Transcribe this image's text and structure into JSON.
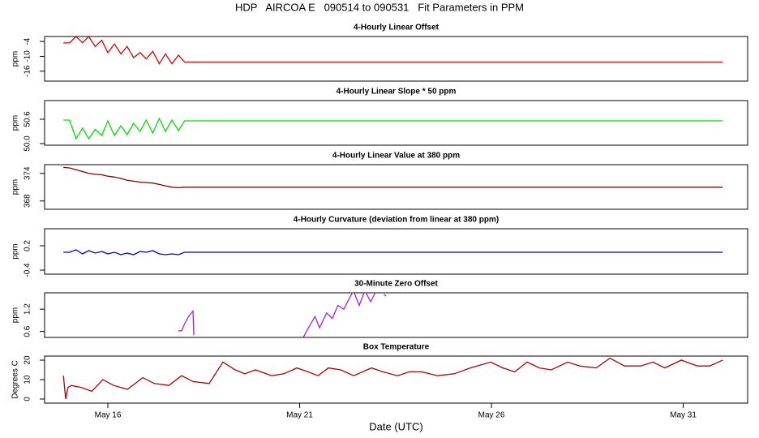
{
  "title": "HDP   AIRCOA E   090514 to 090531   Fit Parameters in PPM",
  "chart_data": [
    {
      "type": "line",
      "title": "4-Hourly Linear Offset",
      "ylabel": "ppm",
      "color": "#e00000",
      "x": [
        14.84,
        15.0,
        15.17,
        15.34,
        15.5,
        15.67,
        15.84,
        16.0,
        16.17,
        16.34,
        16.5,
        16.67,
        16.84,
        17.0,
        17.17,
        17.34,
        17.5,
        17.67,
        17.84,
        18.0,
        32.03
      ],
      "values": [
        -4.6,
        -4.6,
        -2,
        -4.5,
        -2,
        -6,
        -3.5,
        -8.5,
        -5,
        -9,
        -6,
        -10.5,
        -8.5,
        -11,
        -8,
        -13,
        -9,
        -13,
        -9.5,
        -12.3,
        -12.3
      ],
      "xlim": [
        14.35,
        32.68
      ],
      "ylim": [
        -20,
        -2
      ],
      "yticks": [
        -16,
        -10,
        -4
      ]
    },
    {
      "type": "line",
      "title": "4-Hourly Linear Slope * 50 ppm",
      "ylabel": "ppm",
      "color": "#00e000",
      "x": [
        14.84,
        15.0,
        15.17,
        15.34,
        15.5,
        15.67,
        15.84,
        16.0,
        16.17,
        16.34,
        16.5,
        16.67,
        16.84,
        17.0,
        17.17,
        17.34,
        17.5,
        17.67,
        17.84,
        18.0,
        32.03
      ],
      "values": [
        50.58,
        50.58,
        50.12,
        50.38,
        50.12,
        50.35,
        50.2,
        50.56,
        50.2,
        50.44,
        50.22,
        50.5,
        50.3,
        50.58,
        50.26,
        50.62,
        50.3,
        50.58,
        50.32,
        50.56,
        50.56
      ],
      "xlim": [
        14.35,
        32.68
      ],
      "ylim": [
        49.96,
        51.06
      ],
      "yticks": [
        {
          "value": 50,
          "label": "50.0"
        },
        50.6
      ]
    },
    {
      "type": "line",
      "title": "4-Hourly Linear Value at 380 ppm",
      "ylabel": "ppm",
      "color": "#8b0000",
      "x": [
        14.84,
        15.0,
        15.17,
        15.34,
        15.5,
        15.67,
        15.84,
        16.0,
        16.17,
        16.34,
        16.5,
        16.67,
        16.84,
        17.0,
        17.17,
        17.34,
        17.5,
        17.67,
        17.84,
        18.0,
        32.03
      ],
      "values": [
        375.3,
        375.2,
        374.8,
        374.4,
        374.0,
        373.8,
        373.7,
        373.4,
        373.2,
        372.9,
        372.5,
        372.3,
        372.1,
        372.0,
        371.9,
        371.6,
        371.3,
        371.0,
        370.9,
        371.0,
        371.0
      ],
      "xlim": [
        14.35,
        32.68
      ],
      "ylim": [
        366.2,
        375.9
      ],
      "yticks": [
        368,
        374
      ]
    },
    {
      "type": "line",
      "title": "4-Hourly Curvature (deviation from linear at 380 ppm)",
      "ylabel": "ppm",
      "color": "#0000cc",
      "x": [
        14.84,
        15.0,
        15.17,
        15.34,
        15.5,
        15.67,
        15.84,
        16.0,
        16.17,
        16.34,
        16.5,
        16.67,
        16.84,
        17.0,
        17.17,
        17.34,
        17.5,
        17.67,
        17.84,
        18.0,
        32.03
      ],
      "values": [
        0.04,
        0.04,
        0.1,
        0.0,
        0.08,
        0.02,
        0.06,
        0.0,
        0.04,
        -0.02,
        0.02,
        -0.02,
        0.06,
        0.04,
        0.08,
        0.0,
        -0.02,
        0.0,
        -0.02,
        0.04,
        0.04
      ],
      "xlim": [
        14.35,
        32.68
      ],
      "ylim": [
        -0.5,
        0.62
      ],
      "yticks": [
        -0.4,
        0.2
      ]
    },
    {
      "type": "line",
      "title": "30-Minute Zero Offset",
      "ylabel": "ppm",
      "color": "#a020f0",
      "x": [
        17.84,
        17.92,
        18.0,
        18.1,
        18.22,
        18.24,
        18.5,
        21.1,
        21.2,
        21.4,
        21.52,
        21.7,
        21.85,
        22.0,
        22.15,
        22.4,
        22.55,
        22.7,
        22.85,
        23.0,
        23.1,
        23.2,
        23.25
      ],
      "values": [
        0.62,
        0.62,
        0.8,
        1.0,
        1.15,
        0.5,
        null,
        0.45,
        0.65,
        1.0,
        0.7,
        1.1,
        0.95,
        1.3,
        1.2,
        1.7,
        1.3,
        1.7,
        1.4,
        1.7,
        null,
        1.6,
        1.55
      ],
      "xlim": [
        14.35,
        32.68
      ],
      "ylim": [
        0.44,
        1.64
      ],
      "yticks": [
        0.6,
        1.2
      ]
    },
    {
      "type": "line",
      "title": "Box Temperature",
      "ylabel": "Degrees C",
      "color": "#b00000",
      "xlabel": "Date (UTC)",
      "x": [
        14.84,
        14.9,
        14.96,
        15.05,
        15.3,
        15.58,
        15.87,
        16.15,
        16.51,
        16.91,
        17.21,
        17.59,
        17.92,
        18.22,
        18.64,
        19.0,
        19.32,
        19.57,
        19.85,
        20.27,
        20.59,
        20.93,
        21.22,
        21.48,
        21.75,
        22.07,
        22.41,
        22.87,
        23.17,
        23.55,
        23.86,
        24.18,
        24.6,
        25.03,
        25.45,
        25.98,
        26.3,
        26.61,
        26.93,
        27.25,
        27.56,
        27.99,
        28.3,
        28.73,
        29.09,
        29.47,
        29.89,
        30.21,
        30.52,
        30.95,
        31.37,
        31.69,
        32.03
      ],
      "values": [
        12,
        0,
        6,
        7,
        6,
        4,
        10,
        7,
        5,
        11,
        8,
        7,
        12,
        9,
        8,
        19,
        15,
        13,
        15,
        12,
        13,
        16,
        14,
        12,
        16,
        15,
        12,
        16,
        14,
        12,
        14,
        14,
        12,
        13,
        16,
        19,
        16,
        14,
        19,
        16,
        15,
        19,
        17,
        16,
        21,
        17,
        17,
        19,
        16,
        20,
        17,
        17,
        20
      ],
      "xlim": [
        14.35,
        32.68
      ],
      "ylim": [
        -2.1,
        22.1
      ],
      "yticks": [
        0,
        10,
        20
      ],
      "xticks": [
        {
          "value": 16,
          "label": "May 16"
        },
        {
          "value": 21,
          "label": "May 21"
        },
        {
          "value": 26,
          "label": "May 26"
        },
        {
          "value": 31,
          "label": "May 31"
        }
      ]
    }
  ]
}
